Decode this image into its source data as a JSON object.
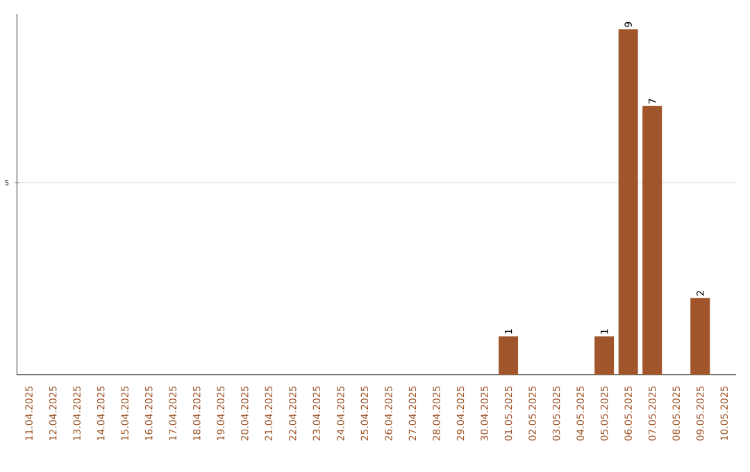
{
  "chart_data": {
    "type": "bar",
    "categories": [
      "11.04.2025",
      "12.04.2025",
      "13.04.2025",
      "14.04.2025",
      "15.04.2025",
      "16.04.2025",
      "17.04.2025",
      "18.04.2025",
      "19.04.2025",
      "20.04.2025",
      "21.04.2025",
      "22.04.2025",
      "23.04.2025",
      "24.04.2025",
      "25.04.2025",
      "26.04.2025",
      "27.04.2025",
      "28.04.2025",
      "29.04.2025",
      "30.04.2025",
      "01.05.2025",
      "02.05.2025",
      "03.05.2025",
      "04.05.2025",
      "05.05.2025",
      "06.05.2025",
      "07.05.2025",
      "08.05.2025",
      "09.05.2025",
      "10.05.2025"
    ],
    "values": [
      null,
      null,
      null,
      null,
      null,
      null,
      null,
      null,
      null,
      null,
      null,
      null,
      null,
      null,
      null,
      null,
      null,
      null,
      null,
      null,
      1,
      null,
      null,
      null,
      1,
      9,
      7,
      null,
      2,
      null
    ],
    "data_labels": true,
    "color": "#a0562a",
    "ylim": [
      0,
      9.4
    ],
    "yticks": [
      {
        "value": 5,
        "label": "5"
      }
    ],
    "grid": "y"
  }
}
